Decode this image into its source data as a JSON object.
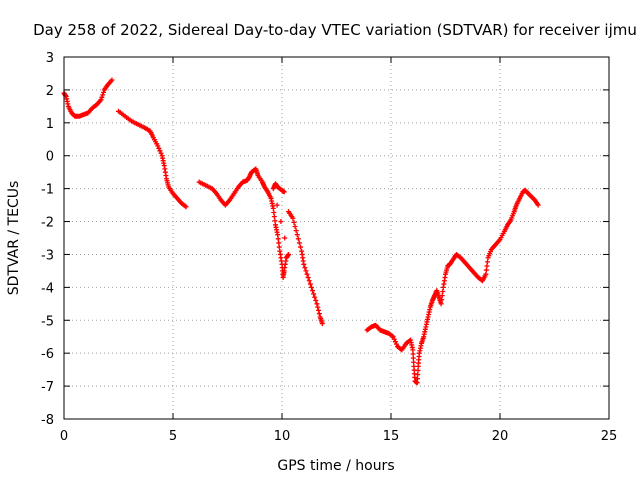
{
  "chart_data": {
    "type": "scatter",
    "title": "Day 258 of 2022, Sidereal Day-to-day VTEC variation (SDTVAR) for receiver ijmu",
    "xlabel": "GPS time / hours",
    "ylabel": "SDTVAR / TECUs",
    "xlim": [
      0,
      25
    ],
    "ylim": [
      -8,
      3
    ],
    "xticks": [
      "0",
      "5",
      "10",
      "15",
      "20",
      "25"
    ],
    "yticks": [
      "3",
      "2",
      "1",
      "0",
      "-1",
      "-2",
      "-3",
      "-4",
      "-5",
      "-6",
      "-7",
      "-8"
    ],
    "grid": true,
    "marker": "+",
    "series_color": "#ff0000",
    "series": [
      {
        "name": "SDTVAR",
        "segments": [
          [
            [
              0.0,
              1.9
            ],
            [
              0.1,
              1.8
            ],
            [
              0.2,
              1.5
            ],
            [
              0.35,
              1.3
            ],
            [
              0.5,
              1.2
            ],
            [
              0.7,
              1.2
            ],
            [
              0.9,
              1.25
            ],
            [
              1.1,
              1.3
            ],
            [
              1.3,
              1.45
            ],
            [
              1.5,
              1.55
            ],
            [
              1.7,
              1.7
            ],
            [
              1.85,
              2.0
            ],
            [
              2.0,
              2.15
            ],
            [
              2.2,
              2.3
            ]
          ],
          [
            [
              2.5,
              1.35
            ],
            [
              2.8,
              1.2
            ],
            [
              3.1,
              1.05
            ],
            [
              3.4,
              0.95
            ],
            [
              3.7,
              0.85
            ],
            [
              3.95,
              0.75
            ],
            [
              4.1,
              0.55
            ],
            [
              4.3,
              0.3
            ],
            [
              4.5,
              0.0
            ],
            [
              4.6,
              -0.3
            ],
            [
              4.7,
              -0.7
            ],
            [
              4.8,
              -0.95
            ],
            [
              5.0,
              -1.15
            ],
            [
              5.2,
              -1.3
            ],
            [
              5.4,
              -1.45
            ],
            [
              5.6,
              -1.55
            ]
          ],
          [
            [
              6.2,
              -0.8
            ],
            [
              6.5,
              -0.9
            ],
            [
              6.8,
              -1.0
            ],
            [
              7.0,
              -1.15
            ],
            [
              7.2,
              -1.35
            ],
            [
              7.4,
              -1.5
            ],
            [
              7.6,
              -1.35
            ],
            [
              7.8,
              -1.15
            ],
            [
              8.0,
              -0.95
            ],
            [
              8.2,
              -0.8
            ],
            [
              8.4,
              -0.75
            ],
            [
              8.5,
              -0.65
            ],
            [
              8.6,
              -0.5
            ],
            [
              8.8,
              -0.4
            ],
            [
              8.9,
              -0.6
            ],
            [
              9.1,
              -0.8
            ],
            [
              9.2,
              -0.95
            ],
            [
              9.35,
              -1.1
            ],
            [
              9.5,
              -1.3
            ],
            [
              9.6,
              -1.6
            ],
            [
              9.7,
              -2.1
            ],
            [
              9.8,
              -2.4
            ],
            [
              9.9,
              -2.9
            ],
            [
              10.0,
              -3.3
            ],
            [
              10.05,
              -3.7
            ],
            [
              10.1,
              -3.5
            ],
            [
              10.2,
              -3.1
            ],
            [
              10.3,
              -3.0
            ],
            [
              9.6,
              -1.0
            ],
            [
              9.7,
              -0.85
            ],
            [
              9.8,
              -0.95
            ],
            [
              10.0,
              -1.05
            ],
            [
              10.1,
              -1.1
            ]
          ],
          [
            [
              10.3,
              -1.7
            ],
            [
              10.5,
              -1.9
            ],
            [
              10.7,
              -2.4
            ],
            [
              10.9,
              -2.9
            ],
            [
              11.0,
              -3.3
            ],
            [
              11.2,
              -3.7
            ],
            [
              11.4,
              -4.1
            ],
            [
              11.6,
              -4.5
            ],
            [
              11.75,
              -4.9
            ],
            [
              11.85,
              -5.1
            ]
          ],
          [
            [
              13.9,
              -5.3
            ],
            [
              14.1,
              -5.2
            ],
            [
              14.3,
              -5.15
            ],
            [
              14.5,
              -5.3
            ],
            [
              14.7,
              -5.35
            ],
            [
              14.9,
              -5.4
            ],
            [
              15.1,
              -5.5
            ],
            [
              15.3,
              -5.8
            ],
            [
              15.5,
              -5.9
            ],
            [
              15.7,
              -5.7
            ],
            [
              15.9,
              -5.6
            ],
            [
              16.0,
              -5.9
            ],
            [
              16.05,
              -6.4
            ],
            [
              16.1,
              -6.85
            ],
            [
              16.2,
              -6.9
            ],
            [
              16.25,
              -6.4
            ],
            [
              16.3,
              -6.0
            ],
            [
              16.4,
              -5.7
            ],
            [
              16.5,
              -5.5
            ],
            [
              16.6,
              -5.2
            ],
            [
              16.7,
              -4.9
            ],
            [
              16.8,
              -4.6
            ],
            [
              16.9,
              -4.4
            ],
            [
              17.0,
              -4.25
            ],
            [
              17.1,
              -4.1
            ],
            [
              17.2,
              -4.3
            ],
            [
              17.3,
              -4.5
            ],
            [
              17.4,
              -4.0
            ],
            [
              17.5,
              -3.6
            ],
            [
              17.6,
              -3.35
            ],
            [
              17.7,
              -3.3
            ],
            [
              17.85,
              -3.15
            ],
            [
              18.0,
              -3.0
            ],
            [
              18.2,
              -3.1
            ],
            [
              18.4,
              -3.25
            ],
            [
              18.6,
              -3.4
            ],
            [
              18.8,
              -3.55
            ],
            [
              19.0,
              -3.7
            ],
            [
              19.2,
              -3.8
            ],
            [
              19.35,
              -3.6
            ],
            [
              19.45,
              -3.1
            ],
            [
              19.6,
              -2.85
            ],
            [
              19.8,
              -2.7
            ],
            [
              20.0,
              -2.55
            ],
            [
              20.2,
              -2.3
            ],
            [
              20.35,
              -2.1
            ],
            [
              20.5,
              -1.95
            ],
            [
              20.65,
              -1.7
            ],
            [
              20.75,
              -1.5
            ],
            [
              20.9,
              -1.3
            ],
            [
              21.05,
              -1.1
            ],
            [
              21.15,
              -1.05
            ],
            [
              21.3,
              -1.15
            ],
            [
              21.45,
              -1.25
            ],
            [
              21.6,
              -1.35
            ],
            [
              21.75,
              -1.5
            ]
          ]
        ]
      }
    ]
  }
}
